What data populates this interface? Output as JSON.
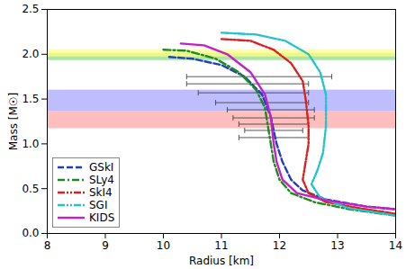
{
  "chart_data": {
    "type": "line",
    "x_label": "Radius [km]",
    "y_label": "Mass [M☉]",
    "xlim": [
      8,
      14
    ],
    "ylim": [
      0,
      2.5
    ],
    "xticks": [
      8,
      9,
      10,
      11,
      12,
      13,
      14
    ],
    "yticks": [
      {
        "value": 0,
        "label": "0.0"
      },
      0.5,
      {
        "value": 1,
        "label": "1.0"
      },
      1.5,
      {
        "value": 2,
        "label": "2.0"
      },
      2.5
    ],
    "grid": false,
    "legend": "lower left",
    "bands": [
      {
        "ymin": 1.93,
        "ymax": 2.01,
        "color": "#8fdc8f"
      },
      {
        "ymin": 1.97,
        "ymax": 2.05,
        "color": "#ffff80"
      },
      {
        "ymin": 1.36,
        "ymax": 1.6,
        "color": "#a8a8ff"
      },
      {
        "ymin": 1.17,
        "ymax": 1.36,
        "color": "#ffa8a8"
      }
    ],
    "error_bars": [
      {
        "y": 1.75,
        "xmin": 10.4,
        "xmax": 12.9
      },
      {
        "y": 1.67,
        "xmin": 10.4,
        "xmax": 12.5
      },
      {
        "y": 1.57,
        "xmin": 10.6,
        "xmax": 12.5
      },
      {
        "y": 1.46,
        "xmin": 10.9,
        "xmax": 12.5
      },
      {
        "y": 1.38,
        "xmin": 11.1,
        "xmax": 12.6
      },
      {
        "y": 1.29,
        "xmin": 11.2,
        "xmax": 12.6
      },
      {
        "y": 1.22,
        "xmin": 11.3,
        "xmax": 12.5
      },
      {
        "y": 1.15,
        "xmin": 11.4,
        "xmax": 12.4
      },
      {
        "y": 1.07,
        "xmin": 11.3,
        "xmax": 12.5
      }
    ],
    "series": [
      {
        "name": "GSkI",
        "color": "#1f3fbf",
        "line_style": "dashed",
        "x": [
          10.1,
          10.5,
          11.0,
          11.4,
          11.7,
          11.85,
          11.95,
          12.05,
          12.2,
          12.4,
          12.8,
          13.5,
          14.0
        ],
        "values": [
          1.97,
          1.95,
          1.88,
          1.75,
          1.55,
          1.3,
          1.0,
          0.8,
          0.6,
          0.48,
          0.38,
          0.3,
          0.27
        ]
      },
      {
        "name": "SLy4",
        "color": "#1f8a1f",
        "line_style": "dashdot",
        "x": [
          10.0,
          10.4,
          10.9,
          11.3,
          11.6,
          11.75,
          11.8,
          11.85,
          11.9,
          12.0,
          12.2,
          12.6,
          13.2,
          14.0
        ],
        "values": [
          2.05,
          2.04,
          1.95,
          1.8,
          1.6,
          1.4,
          1.2,
          1.0,
          0.8,
          0.6,
          0.45,
          0.35,
          0.27,
          0.2
        ]
      },
      {
        "name": "SkI4",
        "color": "#dd1f1f",
        "line_style": "dashdotdot",
        "x": [
          11.0,
          11.5,
          11.9,
          12.2,
          12.4,
          12.45,
          12.5,
          12.5,
          12.45,
          12.4,
          12.5,
          12.8,
          13.4,
          14.0
        ],
        "values": [
          2.17,
          2.15,
          2.05,
          1.9,
          1.7,
          1.5,
          1.2,
          1.0,
          0.8,
          0.6,
          0.45,
          0.35,
          0.28,
          0.22
        ]
      },
      {
        "name": "SGI",
        "color": "#22c4cc",
        "line_style": "dashdotdot",
        "x": [
          11.0,
          11.6,
          12.1,
          12.5,
          12.7,
          12.8,
          12.8,
          12.75,
          12.65,
          12.55,
          12.7,
          13.2,
          14.0
        ],
        "values": [
          2.24,
          2.22,
          2.15,
          2.0,
          1.8,
          1.55,
          1.2,
          0.9,
          0.7,
          0.55,
          0.4,
          0.28,
          0.2
        ]
      },
      {
        "name": "KIDS",
        "color": "#c71fc7",
        "line_style": "solid",
        "x": [
          10.3,
          10.7,
          11.1,
          11.5,
          11.75,
          11.85,
          11.9,
          11.95,
          12.05,
          12.3,
          12.8,
          13.5,
          14.0
        ],
        "values": [
          2.12,
          2.1,
          2.0,
          1.8,
          1.55,
          1.3,
          1.0,
          0.8,
          0.6,
          0.45,
          0.37,
          0.3,
          0.27
        ]
      }
    ]
  }
}
